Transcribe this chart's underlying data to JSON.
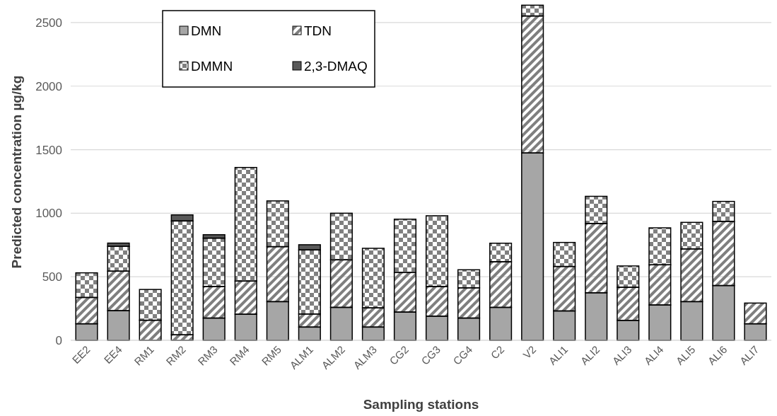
{
  "chart_data": {
    "type": "bar",
    "stacked": true,
    "xlabel": "Sampling stations",
    "ylabel": "Predicted concentration µg/kg",
    "categories": [
      "EE2",
      "EE4",
      "RM1",
      "RM2",
      "RM3",
      "RM4",
      "RM5",
      "ALM1",
      "ALM2",
      "ALM3",
      "CG2",
      "CG3",
      "CG4",
      "C2",
      "V2",
      "ALI1",
      "ALI2",
      "ALI3",
      "ALI4",
      "ALI5",
      "ALI6",
      "ALI7"
    ],
    "series": [
      {
        "name": "DMN",
        "color": "#a6a6a6",
        "values": [
          130,
          233,
          0,
          0,
          175,
          205,
          304,
          104,
          259,
          104,
          222,
          190,
          175,
          259,
          1474,
          231,
          374,
          157,
          278,
          304,
          431,
          130
        ]
      },
      {
        "name": "TDN",
        "color": "#7f7f7f",
        "values": [
          207,
          311,
          158,
          43,
          248,
          261,
          433,
          103,
          374,
          151,
          311,
          233,
          238,
          359,
          1078,
          350,
          545,
          260,
          316,
          415,
          504,
          163
        ]
      },
      {
        "name": "DMMN",
        "color": "#808080",
        "values": [
          194,
          195,
          242,
          896,
          381,
          894,
          360,
          504,
          367,
          469,
          420,
          557,
          142,
          146,
          85,
          189,
          214,
          168,
          291,
          209,
          158,
          0
        ]
      },
      {
        "name": "2,3-DMAQ",
        "color": "#595959",
        "values": [
          0,
          26,
          0,
          48,
          27,
          0,
          0,
          41,
          0,
          0,
          0,
          0,
          0,
          0,
          0,
          0,
          0,
          0,
          0,
          0,
          0,
          0
        ]
      }
    ],
    "ylim": [
      0,
      2650
    ],
    "yticks": [
      0,
      500,
      1000,
      1500,
      2000,
      2500
    ],
    "grid": "y",
    "legend": "top left"
  }
}
